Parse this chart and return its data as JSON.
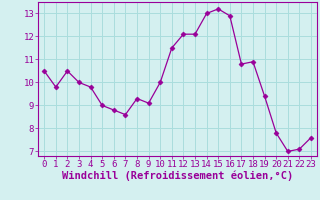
{
  "x": [
    0,
    1,
    2,
    3,
    4,
    5,
    6,
    7,
    8,
    9,
    10,
    11,
    12,
    13,
    14,
    15,
    16,
    17,
    18,
    19,
    20,
    21,
    22,
    23
  ],
  "y": [
    10.5,
    9.8,
    10.5,
    10.0,
    9.8,
    9.0,
    8.8,
    8.6,
    9.3,
    9.1,
    10.0,
    11.5,
    12.1,
    12.1,
    13.0,
    13.2,
    12.9,
    10.8,
    10.9,
    9.4,
    7.8,
    7.0,
    7.1,
    7.6
  ],
  "line_color": "#990099",
  "marker": "D",
  "marker_size": 2.5,
  "bg_color": "#d4f0f0",
  "grid_color": "#aadddd",
  "xlabel": "Windchill (Refroidissement éolien,°C)",
  "xlim": [
    -0.5,
    23.5
  ],
  "ylim": [
    6.8,
    13.5
  ],
  "yticks": [
    7,
    8,
    9,
    10,
    11,
    12,
    13
  ],
  "xticks": [
    0,
    1,
    2,
    3,
    4,
    5,
    6,
    7,
    8,
    9,
    10,
    11,
    12,
    13,
    14,
    15,
    16,
    17,
    18,
    19,
    20,
    21,
    22,
    23
  ],
  "tick_label_fontsize": 6.5,
  "xlabel_fontsize": 7.5
}
